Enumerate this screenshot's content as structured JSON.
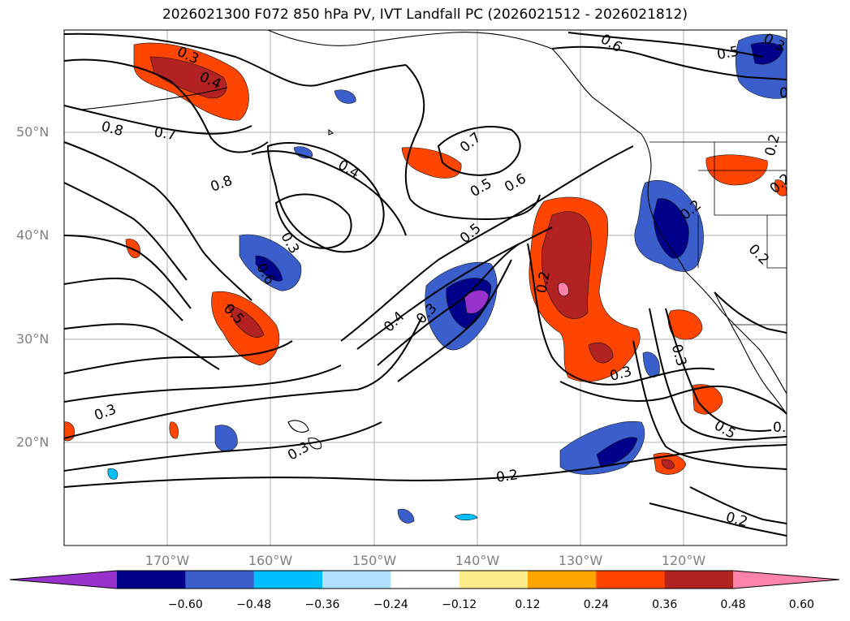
{
  "title": "2026021300 F072 850 hPa PV, IVT Landfall PC (2026021512 - 2026021812)",
  "lat_labels": [
    "50°N",
    "40°N",
    "30°N",
    "20°N"
  ],
  "lon_labels": [
    "170°W",
    "160°W",
    "150°W",
    "140°W",
    "130°W",
    "120°W"
  ],
  "colorbar": {
    "ticks": [
      "−0.60",
      "−0.48",
      "−0.36",
      "−0.24",
      "−0.12",
      "0.12",
      "0.24",
      "0.36",
      "0.48",
      "0.60"
    ],
    "colors": [
      "#9932cc",
      "#00008b",
      "#3a5fcd",
      "#00bfff",
      "#b0e2ff",
      "#ffffff",
      "#ffec8b",
      "#ffa500",
      "#ff4500",
      "#b22222",
      "#ff82ab"
    ],
    "extend": "both"
  },
  "contour_labels": [
    "0.3",
    "0.4",
    "0.8",
    "0.7",
    "0.8",
    "0.4",
    "0.3",
    "0.6",
    "0.5",
    "0.5",
    "0.7",
    "0.6",
    "0.5",
    "0.4",
    "0.3",
    "0.2",
    "0.3",
    "0.3",
    "0.3",
    "0.2",
    "0.2",
    "0.2",
    "0.5",
    "0.6",
    "0.5",
    "0.2",
    "0.2",
    "0.3",
    "0.5",
    "0.3",
    "0.2",
    "0.2"
  ],
  "map": {
    "projection": "PlateCarree",
    "lon_range": [
      -180,
      -110
    ],
    "lat_range": [
      10,
      60
    ],
    "gridlines": true,
    "field_contours": "850 hPa PV",
    "field_fill": "IVT Landfall PC"
  }
}
